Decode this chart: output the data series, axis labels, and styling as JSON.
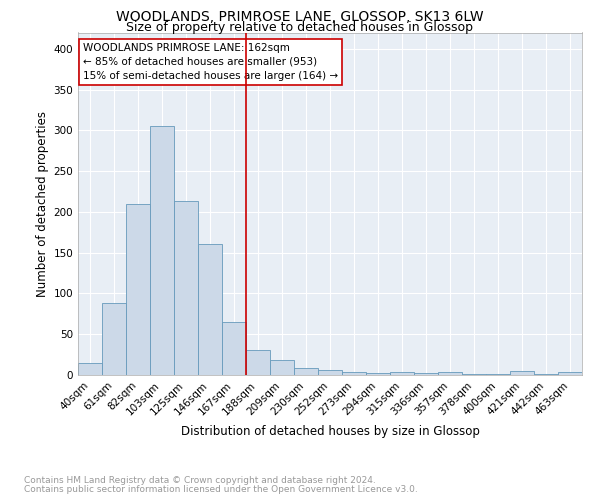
{
  "title": "WOODLANDS, PRIMROSE LANE, GLOSSOP, SK13 6LW",
  "subtitle": "Size of property relative to detached houses in Glossop",
  "xlabel": "Distribution of detached houses by size in Glossop",
  "ylabel": "Number of detached properties",
  "bin_labels": [
    "40sqm",
    "61sqm",
    "82sqm",
    "103sqm",
    "125sqm",
    "146sqm",
    "167sqm",
    "188sqm",
    "209sqm",
    "230sqm",
    "252sqm",
    "273sqm",
    "294sqm",
    "315sqm",
    "336sqm",
    "357sqm",
    "378sqm",
    "400sqm",
    "421sqm",
    "442sqm",
    "463sqm"
  ],
  "bar_heights": [
    15,
    88,
    210,
    305,
    213,
    161,
    65,
    31,
    18,
    9,
    6,
    4,
    3,
    4,
    3,
    4,
    1,
    1,
    5,
    1,
    4
  ],
  "bar_color": "#ccd9e8",
  "bar_edge_color": "#6699bb",
  "vline_color": "#cc0000",
  "annotation_title": "WOODLANDS PRIMROSE LANE: 162sqm",
  "annotation_line1": "← 85% of detached houses are smaller (953)",
  "annotation_line2": "15% of semi-detached houses are larger (164) →",
  "annotation_box_color": "#ffffff",
  "annotation_box_edge": "#cc0000",
  "ylim": [
    0,
    420
  ],
  "yticks": [
    0,
    50,
    100,
    150,
    200,
    250,
    300,
    350,
    400
  ],
  "footnote_line1": "Contains HM Land Registry data © Crown copyright and database right 2024.",
  "footnote_line2": "Contains public sector information licensed under the Open Government Licence v3.0.",
  "background_color": "#e8eef5",
  "grid_color": "#ffffff",
  "title_fontsize": 10,
  "subtitle_fontsize": 9,
  "axis_label_fontsize": 8.5,
  "tick_fontsize": 7.5,
  "annotation_fontsize": 7.5,
  "footnote_fontsize": 6.5
}
